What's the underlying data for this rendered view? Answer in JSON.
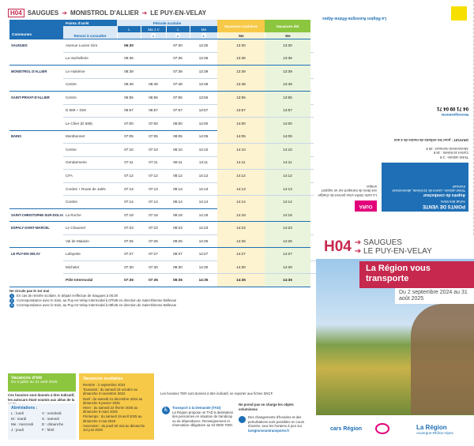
{
  "header": {
    "line": "H04",
    "origin": "SAUGUES",
    "via": "MONISTROL D'ALLIER",
    "destination": "LE PUY-EN-VELAY"
  },
  "table": {
    "communes_label": "Communes",
    "stops_label": "Points d'arrêt",
    "notes_label": "Renvoi à consulter",
    "school_label": "Période scolaire",
    "holidays_label": "Vacances scolaires",
    "summer_label": "Vacances été",
    "days": [
      "L",
      "Ma J V",
      "L",
      "Me",
      "Me",
      "Me"
    ],
    "renvois": [
      "1",
      "2",
      "3"
    ],
    "rows": [
      {
        "commune": "SAUGUES",
        "stop": "Avenue Lucien Gire",
        "times": [
          "06:30",
          null,
          "07:30",
          "13:30",
          "13:30",
          "13:30"
        ]
      },
      {
        "stop": "La Vachellerie",
        "times": [
          "06:36",
          null,
          "07:36",
          "13:36",
          "13:36",
          "13:36"
        ]
      },
      {
        "commune": "MONISTROL D'ALLIER",
        "stop": "Le Huitième",
        "times": [
          "06:39",
          null,
          "07:39",
          "13:39",
          "13:39",
          "13:39"
        ]
      },
      {
        "stop": "Centre",
        "times": [
          "06:48",
          "06:48",
          "07:48",
          "13:48",
          "13:48",
          "13:48"
        ]
      },
      {
        "commune": "SAINT-PRIVAT-D'ALLIER",
        "stop": "Centre",
        "times": [
          "06:55",
          "06:55",
          "07:55",
          "13:55",
          "13:55",
          "13:55"
        ]
      },
      {
        "stop": "D 589 + D25",
        "times": [
          "06:57",
          "06:57",
          "07:57",
          "13:57",
          "13:57",
          "13:57"
        ]
      },
      {
        "stop": "Le Chier (D 589)",
        "times": [
          "07:00",
          "07:00",
          "08:00",
          "14:00",
          "14:00",
          "14:00"
        ]
      },
      {
        "commune": "BAINS",
        "stop": "Montbonnet",
        "times": [
          "07:05",
          "07:05",
          "08:05",
          "14:05",
          "14:05",
          "14:05"
        ]
      },
      {
        "stop": "Centre",
        "times": [
          "07:10",
          "07:10",
          "08:10",
          "14:10",
          "14:10",
          "14:10"
        ]
      },
      {
        "stop": "Gendarmerie",
        "times": [
          "07:11",
          "07:11",
          "08:11",
          "14:11",
          "14:11",
          "14:11"
        ]
      },
      {
        "stop": "CFA",
        "times": [
          "07:12",
          "07:12",
          "08:12",
          "14:12",
          "14:12",
          "14:12"
        ]
      },
      {
        "stop": "Cordes + Route de Jalès",
        "times": [
          "07:13",
          "07:13",
          "08:13",
          "14:13",
          "14:13",
          "14:13"
        ]
      },
      {
        "stop": "Cordes",
        "times": [
          "07:14",
          "07:14",
          "08:14",
          "14:14",
          "14:14",
          "14:14"
        ]
      },
      {
        "commune": "SAINT-CHRISTOPHE-SUR-DOLAIZON",
        "stop": "La Roche",
        "times": [
          "07:18",
          "07:18",
          "08:18",
          "14:18",
          "14:18",
          "14:18"
        ]
      },
      {
        "commune": "ESPALY-SAINT-MARCEL",
        "stop": "Le Chaumet",
        "times": [
          "07:23",
          "07:23",
          "08:23",
          "14:23",
          "14:23",
          "14:23"
        ]
      },
      {
        "stop": "Val de Malaize",
        "times": [
          "07:25",
          "07:25",
          "08:25",
          "14:25",
          "14:25",
          "14:25"
        ]
      },
      {
        "commune": "LE PUY-EN-VELAY",
        "stop": "Lafayette",
        "times": [
          "07:27",
          "07:27",
          "08:27",
          "14:27",
          "14:27",
          "14:27"
        ]
      },
      {
        "stop": "Michelet",
        "times": [
          "07:30",
          "07:30",
          "08:30",
          "14:30",
          "14:30",
          "14:30"
        ]
      },
      {
        "stop": "Pôle Intermodal",
        "times": [
          "07:35",
          "07:35",
          "08:35",
          "14:35",
          "14:35",
          "14:35"
        ]
      }
    ]
  },
  "notes": {
    "title": "Ne circule pas le 1er mai",
    "items": [
      {
        "num": "1",
        "text": "En cas de rentrée scolaire, le départ s'effectue de Saugues à 06:30"
      },
      {
        "num": "2",
        "text": "Correspondance avec le train, au Puy-en-Velay Intermodal à 07h39 en direction de Saint-Étienne Bellevue"
      },
      {
        "num": "3",
        "text": "Correspondance avec le train, au Puy-en-Velay Intermodal à 08h46 en direction de Saint-Étienne Bellevue"
      }
    ]
  },
  "summer": {
    "title": "Vacances d'été",
    "dates": "Du 5 juillet au 31 août 2025"
  },
  "disclaimer": "Ces horaires sont donnés à titre indicatif, les autocars étant soumis aux aléas de la route",
  "abbreviations": {
    "title": "Abréviations :",
    "items": [
      "L : lundi",
      "V : vendredi",
      "M : mardi",
      "S : samedi",
      "Me : mercredi",
      "D : dimanche",
      "J : jeudi",
      "F : férié"
    ]
  },
  "school_holidays": {
    "title": "Vacances scolaires",
    "items": [
      "Rentrée : 2 septembre 2024",
      "Toussaint : du samedi 19 octobre au dimanche 3 novembre 2024",
      "Noël : du samedi 21 décembre 2024 au dimanche 5 janvier 2025",
      "Hiver : du samedi 22 février 2025 au dimanche 9 mars 2025",
      "Printemps : du samedi 19 avril 2025 au dimanche 4 mai 2025",
      "Ascension : du jeudi 29 mai au dimanche 1er juin 2025"
    ]
  },
  "info": {
    "ter": "Les horaires TER sont donnés à titre indicatif, se reporter aux fiches SNCF.",
    "tad_title": "Transport à la Demande (TAD)",
    "tad_text": "La Région propose un TAD à destination des personnes en situation de handicap ou de dépendance. Renseignement et réservation obligatoire au 04 8000 7000.",
    "luggage": "Ne prend pas en charge les objets volumineux",
    "changes": "Des changements d'horaires et des perturbations sont possibles en cours d'année, tous les horaires à jour sur",
    "website": "laregionvoustransporte.fr"
  },
  "cover": {
    "line": "H04",
    "origin": "SAUGUES",
    "destination": "LE PUY-EN-VELAY",
    "banner": "La Région vous transporte",
    "validity": "Du 2 septembre 2024 au 31 août 2025",
    "brand": "cars Région",
    "region": "La Région",
    "region_sub": "Auvergne-Rhône-Alpes"
  },
  "back": {
    "sales_title": "POINTS DE VENTE",
    "sales_sub": "Achat des titres",
    "driver_title": "Auprès du conducteur",
    "driver_text": "Ticket unitaire, carnet de 10 tickets, abonnement mensuel",
    "tickets": [
      "Ticket unitaire : 2 €",
      "Carnet 10 tickets : 15 €",
      "Abonnement mensuel : 30 €"
    ],
    "free": "GRATUIT : pour les enfants de moins de 4 ans",
    "oura_title": "OùRA",
    "oura_text": "La carte OùRA vous permet de charger vos titres de transport sur un support unique.",
    "contact_title": "Renseignements",
    "contact_phone": "04 71 09 04 71",
    "region_footer": "La Région Auvergne-Rhône-Alpes"
  }
}
